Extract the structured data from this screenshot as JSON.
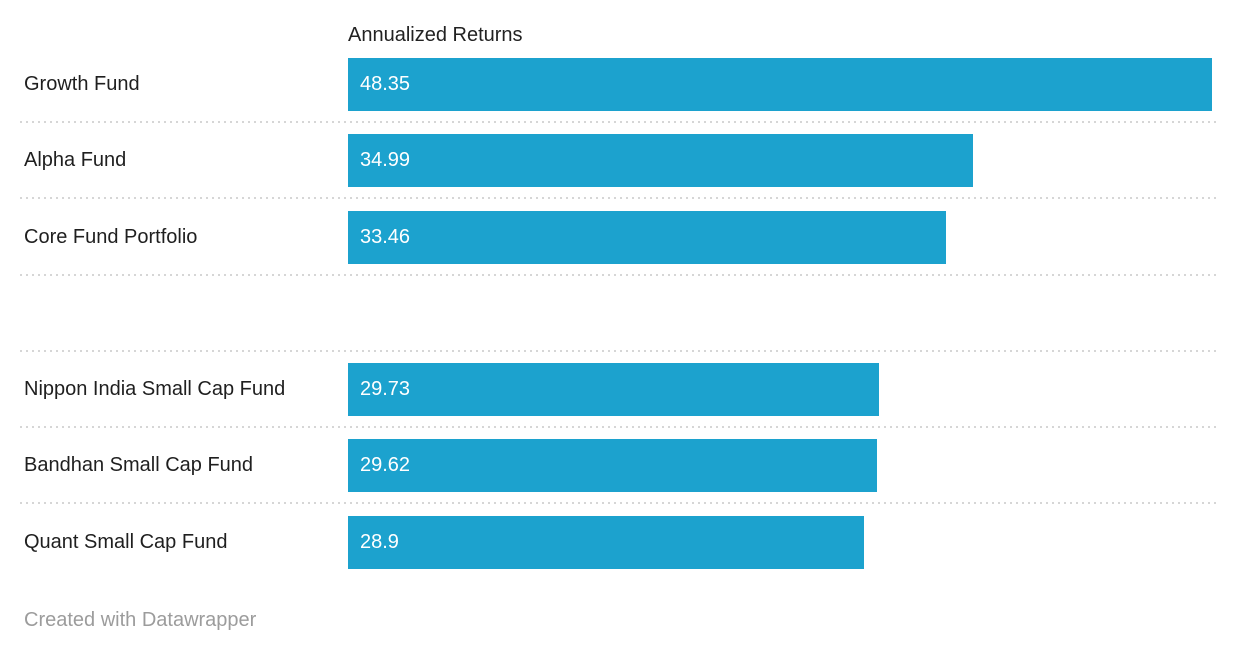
{
  "chart_data": {
    "type": "bar",
    "orientation": "horizontal",
    "title": "",
    "column_header": "Annualized Returns",
    "categories": [
      "Growth Fund",
      "Alpha Fund",
      "Core Fund Portfolio",
      "",
      "Nippon India Small Cap Fund",
      "Bandhan Small Cap Fund",
      "Quant Small Cap Fund"
    ],
    "values": [
      48.35,
      34.99,
      33.46,
      null,
      29.73,
      29.62,
      28.9
    ],
    "value_labels": [
      "48.35",
      "34.99",
      "33.46",
      "",
      "29.73",
      "29.62",
      "28.9"
    ],
    "xlim": [
      0,
      48.35
    ],
    "grid": false,
    "legend_position": "none",
    "bar_color": "#1CA2CE",
    "footer": "Created with Datawrapper"
  },
  "header": {
    "column_label": "Annualized Returns"
  },
  "rows": [
    {
      "label": "Growth Fund",
      "value": 48.35,
      "value_label": "48.35"
    },
    {
      "label": "Alpha Fund",
      "value": 34.99,
      "value_label": "34.99"
    },
    {
      "label": "Core Fund Portfolio",
      "value": 33.46,
      "value_label": "33.46"
    },
    {
      "label": "",
      "value": null,
      "value_label": ""
    },
    {
      "label": "Nippon India Small Cap Fund",
      "value": 29.73,
      "value_label": "29.73"
    },
    {
      "label": "Bandhan Small Cap Fund",
      "value": 29.62,
      "value_label": "29.62"
    },
    {
      "label": "Quant Small Cap Fund",
      "value": 28.9,
      "value_label": "28.9"
    }
  ],
  "footer": {
    "attribution": "Created with Datawrapper"
  },
  "colors": {
    "bar": "#1CA2CE",
    "header_text": "#222222",
    "label_text": "#1F1F1F",
    "value_text": "#FFFFFF",
    "separator": "#D6D6D6",
    "footer_text": "#9C9C9C",
    "background": "#FFFFFF"
  }
}
